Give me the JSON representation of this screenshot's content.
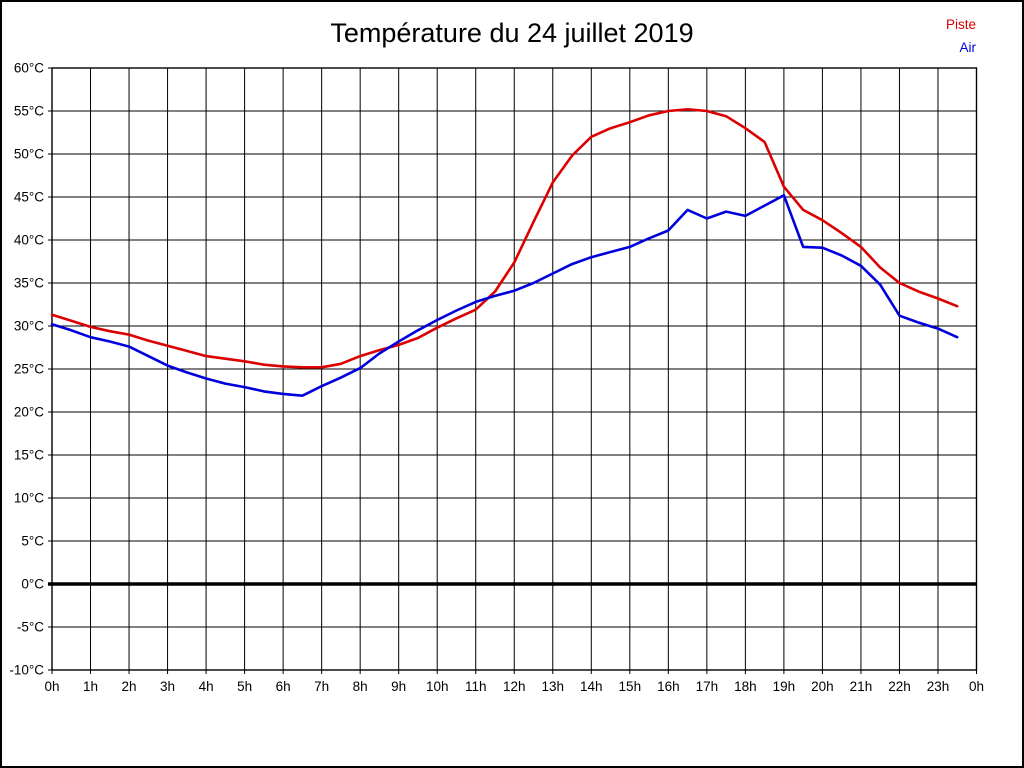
{
  "page": {
    "background": "#ffffff",
    "frame_color": "#000000",
    "grid_color": "#000000"
  },
  "header": {
    "title": "Température du 24 juillet 2019"
  },
  "legend": {
    "position": "top-right",
    "items": [
      {
        "label": "Piste",
        "color": "#dd0000"
      },
      {
        "label": "Air",
        "color": "#0000dd"
      }
    ]
  },
  "chart_data": {
    "type": "line",
    "title": "Température du 24 juillet 2019",
    "xlabel": "",
    "ylabel": "",
    "xlim": [
      0,
      24
    ],
    "ylim": [
      -10,
      60
    ],
    "grid": true,
    "zero_line": {
      "value": 0,
      "thick": true
    },
    "x_ticks": [
      {
        "value": 0,
        "label": "0h"
      },
      {
        "value": 1,
        "label": "1h"
      },
      {
        "value": 2,
        "label": "2h"
      },
      {
        "value": 3,
        "label": "3h"
      },
      {
        "value": 4,
        "label": "4h"
      },
      {
        "value": 5,
        "label": "5h"
      },
      {
        "value": 6,
        "label": "6h"
      },
      {
        "value": 7,
        "label": "7h"
      },
      {
        "value": 8,
        "label": "8h"
      },
      {
        "value": 9,
        "label": "9h"
      },
      {
        "value": 10,
        "label": "10h"
      },
      {
        "value": 11,
        "label": "11h"
      },
      {
        "value": 12,
        "label": "12h"
      },
      {
        "value": 13,
        "label": "13h"
      },
      {
        "value": 14,
        "label": "14h"
      },
      {
        "value": 15,
        "label": "15h"
      },
      {
        "value": 16,
        "label": "16h"
      },
      {
        "value": 17,
        "label": "17h"
      },
      {
        "value": 18,
        "label": "18h"
      },
      {
        "value": 19,
        "label": "19h"
      },
      {
        "value": 20,
        "label": "20h"
      },
      {
        "value": 21,
        "label": "21h"
      },
      {
        "value": 22,
        "label": "22h"
      },
      {
        "value": 23,
        "label": "23h"
      },
      {
        "value": 24,
        "label": "0h"
      }
    ],
    "y_ticks": [
      {
        "value": -10,
        "label": "-10°C"
      },
      {
        "value": -5,
        "label": "-5°C"
      },
      {
        "value": 0,
        "label": "0°C"
      },
      {
        "value": 5,
        "label": "5°C"
      },
      {
        "value": 10,
        "label": "10°C"
      },
      {
        "value": 15,
        "label": "15°C"
      },
      {
        "value": 20,
        "label": "20°C"
      },
      {
        "value": 25,
        "label": "25°C"
      },
      {
        "value": 30,
        "label": "30°C"
      },
      {
        "value": 35,
        "label": "35°C"
      },
      {
        "value": 40,
        "label": "40°C"
      },
      {
        "value": 45,
        "label": "45°C"
      },
      {
        "value": 50,
        "label": "50°C"
      },
      {
        "value": 55,
        "label": "55°C"
      },
      {
        "value": 60,
        "label": "60°C"
      }
    ],
    "x": [
      0,
      0.5,
      1,
      1.5,
      2,
      2.5,
      3,
      3.5,
      4,
      4.5,
      5,
      5.5,
      6,
      6.5,
      7,
      7.5,
      8,
      8.5,
      9,
      9.5,
      10,
      10.5,
      11,
      11.5,
      12,
      12.5,
      13,
      13.5,
      14,
      14.5,
      15,
      15.5,
      16,
      16.5,
      17,
      17.5,
      18,
      18.5,
      19,
      19.5,
      20,
      20.5,
      21,
      21.5,
      22,
      22.5,
      23,
      23.5
    ],
    "series": [
      {
        "name": "Piste",
        "color": "#dd0000",
        "values": [
          31.3,
          30.6,
          29.9,
          29.4,
          29.0,
          28.3,
          27.7,
          27.1,
          26.5,
          26.2,
          25.9,
          25.5,
          25.3,
          25.2,
          25.2,
          25.6,
          26.5,
          27.2,
          27.8,
          28.6,
          29.8,
          30.9,
          31.9,
          34.0,
          37.4,
          42.1,
          46.7,
          49.8,
          52.0,
          53.0,
          53.7,
          54.5,
          55.0,
          55.2,
          55.0,
          54.4,
          53.0,
          51.4,
          46.2,
          43.5,
          42.3,
          40.8,
          39.2,
          36.8,
          35.0,
          34.0,
          33.2,
          32.3
        ]
      },
      {
        "name": "Air",
        "color": "#0000dd",
        "values": [
          30.2,
          29.5,
          28.7,
          28.2,
          27.6,
          26.5,
          25.4,
          24.6,
          23.9,
          23.3,
          22.9,
          22.4,
          22.1,
          21.9,
          23.0,
          24.0,
          25.1,
          26.8,
          28.2,
          29.5,
          30.7,
          31.8,
          32.8,
          33.5,
          34.1,
          35.0,
          36.1,
          37.2,
          38.0,
          38.6,
          39.2,
          40.2,
          41.1,
          43.5,
          42.5,
          43.3,
          42.8,
          44.0,
          45.2,
          39.2,
          39.1,
          38.2,
          37.0,
          34.8,
          31.2,
          30.4,
          29.7,
          28.7
        ]
      }
    ],
    "legend_position": "top-right"
  }
}
